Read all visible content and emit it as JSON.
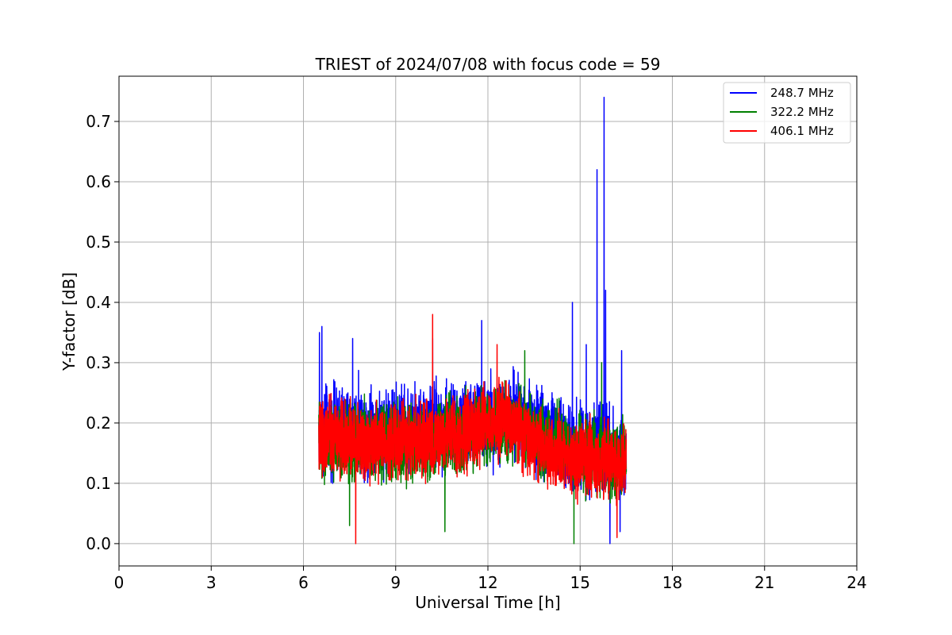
{
  "chart_data": {
    "type": "line",
    "title": "TRIEST of 2024/07/08 with focus code = 59",
    "xlabel": "Universal Time [h]",
    "ylabel": "Y-factor [dB]",
    "xlim": [
      0,
      24
    ],
    "ylim": [
      -0.037,
      0.775
    ],
    "xticks": [
      0,
      3,
      6,
      9,
      12,
      15,
      18,
      21,
      24
    ],
    "yticks": [
      0.0,
      0.1,
      0.2,
      0.3,
      0.4,
      0.5,
      0.6,
      0.7
    ],
    "ytick_labels": [
      "0.0",
      "0.1",
      "0.2",
      "0.3",
      "0.4",
      "0.5",
      "0.6",
      "0.7"
    ],
    "grid": true,
    "legend_position": "top-right",
    "series": [
      {
        "name": "248.7 MHz",
        "color": "#0000ff",
        "time_range": [
          6.5,
          16.5
        ],
        "band_center": [
          [
            6.5,
            0.19
          ],
          [
            8,
            0.19
          ],
          [
            10,
            0.19
          ],
          [
            12,
            0.2
          ],
          [
            13,
            0.21
          ],
          [
            14,
            0.18
          ],
          [
            15,
            0.16
          ],
          [
            16.5,
            0.15
          ]
        ],
        "noise_amplitude": 0.1,
        "spikes": [
          [
            6.52,
            0.35
          ],
          [
            6.6,
            0.36
          ],
          [
            7.6,
            0.34
          ],
          [
            10.2,
            0.34
          ],
          [
            11.8,
            0.37
          ],
          [
            14.75,
            0.4
          ],
          [
            15.2,
            0.33
          ],
          [
            15.55,
            0.62
          ],
          [
            15.78,
            0.74
          ],
          [
            15.83,
            0.42
          ],
          [
            16.35,
            0.32
          ],
          [
            15.97,
            0.0
          ],
          [
            16.3,
            0.02
          ]
        ]
      },
      {
        "name": "322.2 MHz",
        "color": "#008000",
        "time_range": [
          6.5,
          16.5
        ],
        "band_center": [
          [
            6.5,
            0.17
          ],
          [
            8,
            0.17
          ],
          [
            10,
            0.17
          ],
          [
            12,
            0.19
          ],
          [
            13,
            0.2
          ],
          [
            14,
            0.17
          ],
          [
            15,
            0.15
          ],
          [
            16.5,
            0.14
          ]
        ],
        "noise_amplitude": 0.09,
        "spikes": [
          [
            13.2,
            0.32
          ],
          [
            14.8,
            0.0
          ],
          [
            10.6,
            0.02
          ],
          [
            7.5,
            0.03
          ],
          [
            15.7,
            0.3
          ]
        ]
      },
      {
        "name": "406.1 MHz",
        "color": "#ff0000",
        "time_range": [
          6.5,
          16.5
        ],
        "band_center": [
          [
            6.5,
            0.18
          ],
          [
            8,
            0.17
          ],
          [
            10,
            0.17
          ],
          [
            12,
            0.19
          ],
          [
            12.5,
            0.21
          ],
          [
            13,
            0.19
          ],
          [
            14,
            0.15
          ],
          [
            15,
            0.14
          ],
          [
            16.5,
            0.13
          ]
        ],
        "noise_amplitude": 0.085,
        "spikes": [
          [
            10.2,
            0.38
          ],
          [
            7.7,
            0.0
          ],
          [
            12.3,
            0.33
          ],
          [
            16.2,
            0.01
          ]
        ]
      }
    ]
  }
}
